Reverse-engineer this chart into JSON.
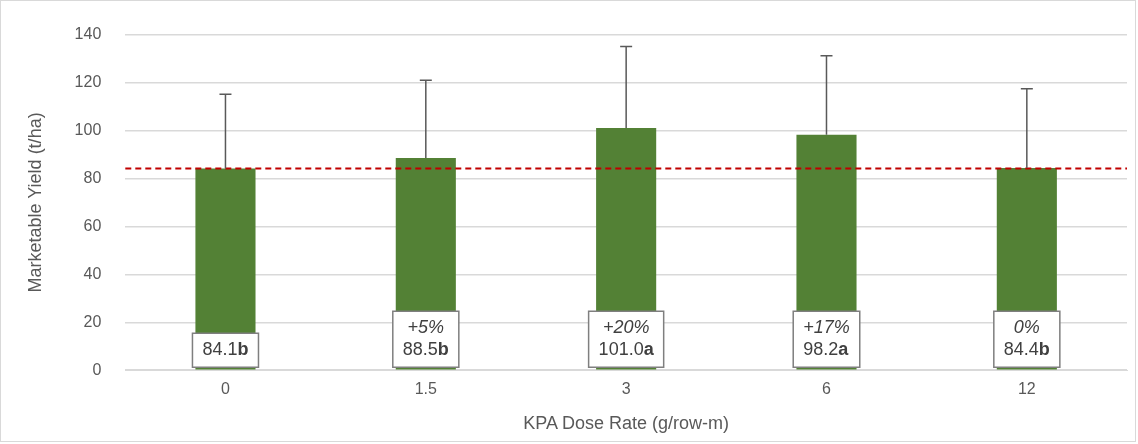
{
  "chart_data": {
    "type": "bar",
    "xlabel": "KPA Dose Rate (g/row-m)",
    "ylabel": "Marketable Yield (t/ha)",
    "categories": [
      "0",
      "1.5",
      "3",
      "6",
      "12"
    ],
    "values": [
      84.1,
      88.5,
      101.0,
      98.2,
      84.4
    ],
    "errors": [
      [
        84.1,
        115.1
      ],
      [
        88.5,
        121
      ],
      [
        101.0,
        135
      ],
      [
        98.2,
        131.2
      ],
      [
        84.4,
        117.4
      ]
    ],
    "value_labels": [
      "84.1b",
      "88.5b",
      "101.0a",
      "98.2a",
      "84.4b"
    ],
    "annotations": [
      "+5%",
      "+20%",
      "+17%",
      "0%"
    ],
    "color": "#538135",
    "ylim": [
      0,
      140
    ],
    "yticks": [
      0,
      20,
      40,
      60,
      80,
      100,
      120,
      140
    ],
    "grid": "y",
    "ref_lines": [
      {
        "axis": "y",
        "value": 84.1,
        "color": "#c00000",
        "line_style": "dashed"
      }
    ],
    "legend": false
  }
}
